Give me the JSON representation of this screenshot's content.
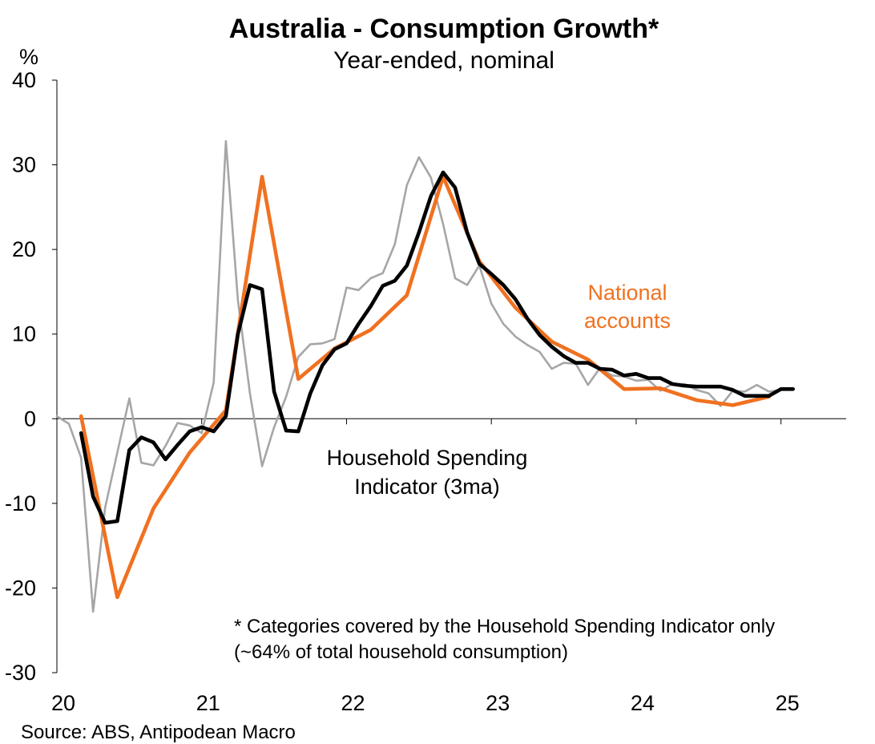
{
  "chart_data": {
    "type": "line",
    "title": "Australia - Consumption Growth*",
    "subtitle": "Year-ended, nominal",
    "ylabel": "%",
    "xlabel": "",
    "ylim": [
      -30,
      40
    ],
    "yticks": [
      40,
      30,
      20,
      10,
      0,
      -10,
      -20,
      -30
    ],
    "xlim": [
      20,
      25.45
    ],
    "xticks": [
      "20",
      "21",
      "22",
      "23",
      "24",
      "25"
    ],
    "grid": false,
    "source": "Source: ABS, Antipodean Macro",
    "footnote": [
      "* Categories covered by the Household Spending Indicator only",
      "(~64% of total household consumption)"
    ],
    "annotations": {
      "hsi": [
        "Household Spending",
        "Indicator (3ma)"
      ],
      "na": [
        "National",
        "accounts"
      ]
    },
    "colors": {
      "monthly": "#a6a6a6",
      "hsi3ma": "#000000",
      "national": "#f07120",
      "axis": "#000000"
    },
    "series": [
      {
        "name": "Household Spending Indicator (monthly)",
        "color": "#a6a6a6",
        "x": [
          20.0,
          20.083,
          20.167,
          20.25,
          20.333,
          20.417,
          20.5,
          20.583,
          20.667,
          20.75,
          20.833,
          20.917,
          21.0,
          21.083,
          21.167,
          21.25,
          21.333,
          21.417,
          21.5,
          21.583,
          21.667,
          21.75,
          21.833,
          21.917,
          22.0,
          22.083,
          22.167,
          22.25,
          22.333,
          22.417,
          22.5,
          22.583,
          22.667,
          22.75,
          22.833,
          22.917,
          23.0,
          23.083,
          23.167,
          23.25,
          23.333,
          23.417,
          23.5,
          23.583,
          23.667,
          23.75,
          23.833,
          23.917,
          24.0,
          24.083,
          24.167,
          24.25,
          24.333,
          24.417,
          24.5,
          24.583,
          24.667,
          24.75,
          24.833,
          24.917,
          25.0
        ],
        "values": [
          0.3,
          -0.6,
          -4.6,
          -22.8,
          -10.5,
          -4.0,
          2.4,
          -5.2,
          -5.5,
          -3.2,
          -0.5,
          -0.8,
          -1.7,
          4.3,
          32.8,
          14.0,
          3.0,
          -5.6,
          -1.0,
          2.6,
          7.3,
          8.8,
          8.9,
          9.4,
          15.5,
          15.2,
          16.6,
          17.2,
          20.6,
          27.6,
          30.9,
          28.5,
          23.0,
          16.6,
          15.8,
          18.1,
          13.6,
          11.2,
          9.7,
          8.7,
          7.9,
          5.9,
          6.6,
          6.5,
          4.0,
          6.0,
          5.1,
          5.0,
          4.5,
          4.6,
          3.3,
          4.1,
          4.1,
          3.4,
          3.0,
          1.5,
          3.3,
          3.2,
          4.0,
          3.2,
          3.4
        ]
      },
      {
        "name": "Household Spending Indicator (3ma)",
        "color": "#000000",
        "x": [
          20.167,
          20.25,
          20.333,
          20.417,
          20.5,
          20.583,
          20.667,
          20.75,
          20.833,
          20.917,
          21.0,
          21.083,
          21.167,
          21.25,
          21.333,
          21.417,
          21.5,
          21.583,
          21.667,
          21.75,
          21.833,
          21.917,
          22.0,
          22.083,
          22.167,
          22.25,
          22.333,
          22.417,
          22.5,
          22.583,
          22.667,
          22.75,
          22.833,
          22.917,
          23.0,
          23.083,
          23.167,
          23.25,
          23.333,
          23.417,
          23.5,
          23.583,
          23.667,
          23.75,
          23.833,
          23.917,
          24.0,
          24.083,
          24.167,
          24.25,
          24.333,
          24.417,
          24.5,
          24.583,
          24.667,
          24.75,
          24.833,
          24.917,
          25.0,
          25.083
        ],
        "values": [
          -1.7,
          -9.2,
          -12.3,
          -12.1,
          -3.7,
          -2.2,
          -2.8,
          -4.8,
          -3.1,
          -1.5,
          -1.0,
          -1.5,
          0.3,
          10.0,
          15.8,
          15.3,
          3.2,
          -1.4,
          -1.5,
          3.0,
          6.3,
          8.2,
          8.9,
          11.2,
          13.3,
          15.7,
          16.3,
          18.1,
          22.0,
          26.3,
          29.1,
          27.3,
          22.0,
          18.3,
          17.1,
          15.8,
          14.1,
          11.8,
          9.9,
          8.5,
          7.4,
          6.6,
          6.6,
          5.9,
          5.8,
          5.1,
          5.3,
          4.8,
          4.8,
          4.1,
          3.9,
          3.8,
          3.8,
          3.8,
          3.4,
          2.7,
          2.7,
          2.7,
          3.5,
          3.5
        ]
      },
      {
        "name": "National accounts",
        "color": "#f07120",
        "x": [
          20.167,
          20.417,
          20.667,
          20.917,
          21.167,
          21.417,
          21.667,
          21.917,
          22.167,
          22.417,
          22.667,
          22.917,
          23.167,
          23.417,
          23.667,
          23.917,
          24.167,
          24.417,
          24.667,
          24.917
        ],
        "values": [
          0.3,
          -21.1,
          -10.6,
          -4.0,
          1.0,
          28.6,
          4.7,
          8.3,
          10.5,
          14.6,
          28.6,
          18.6,
          13.1,
          9.1,
          7.0,
          3.5,
          3.6,
          2.2,
          1.6,
          2.6
        ]
      }
    ]
  }
}
